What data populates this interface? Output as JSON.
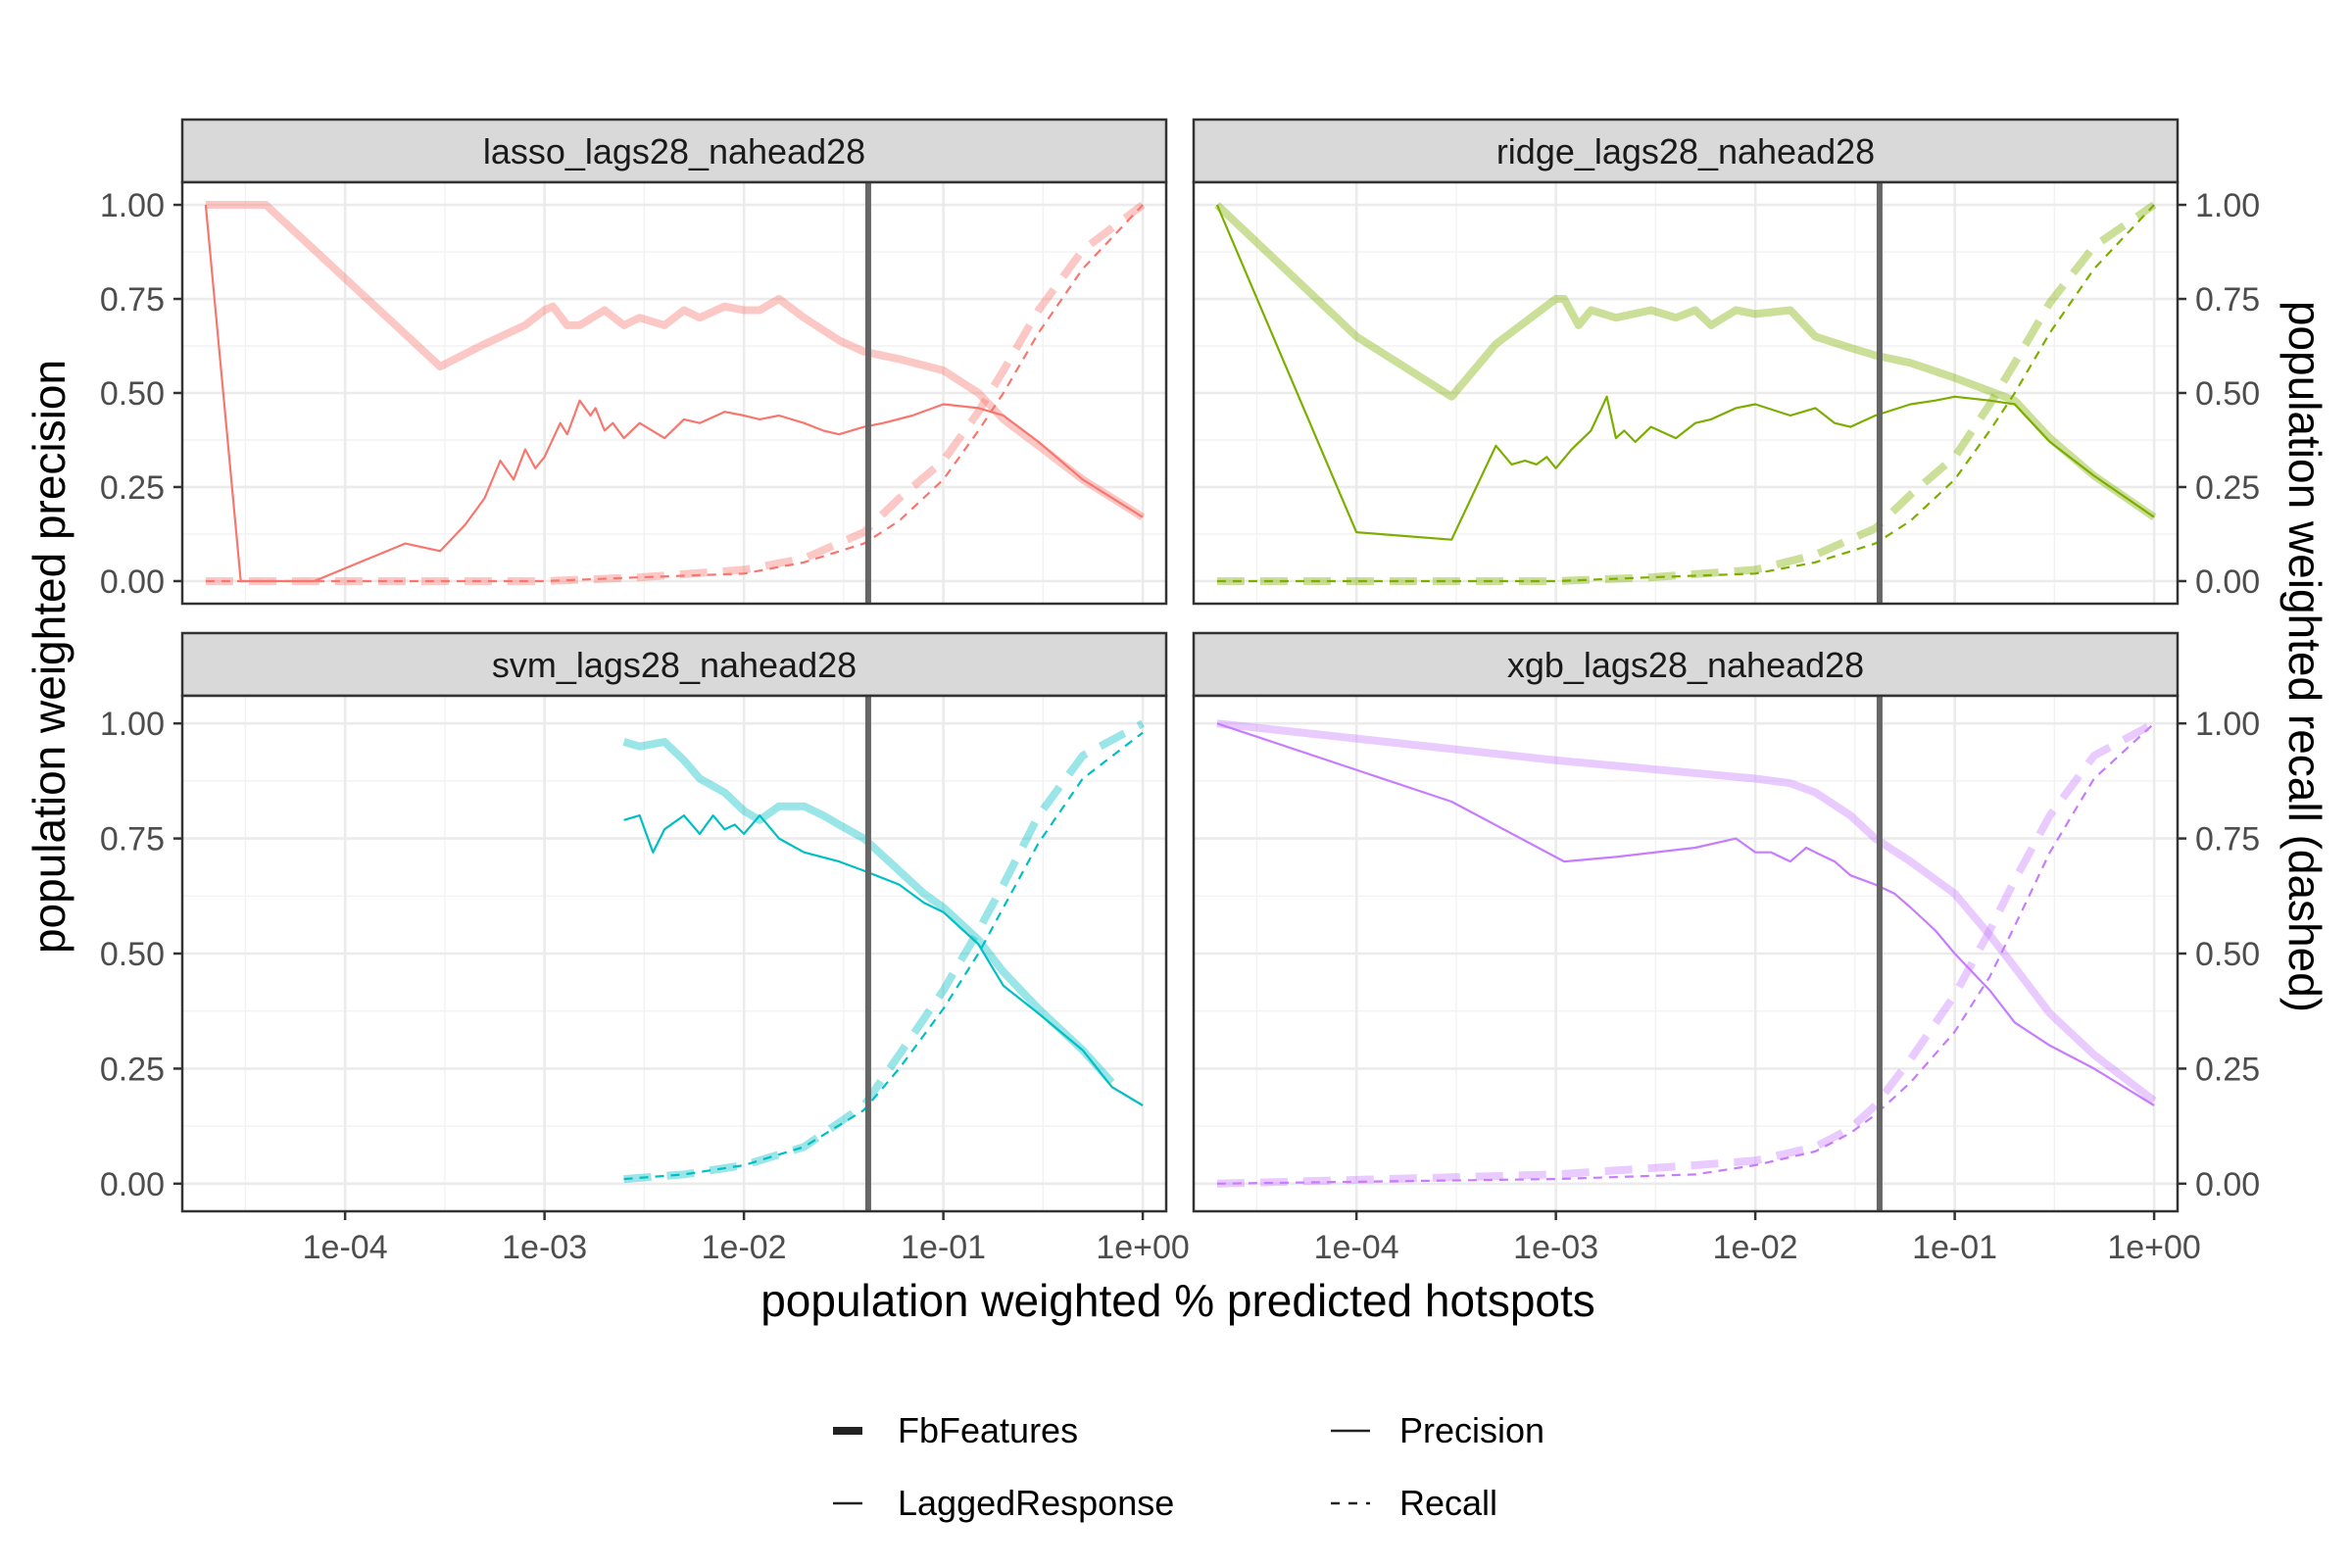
{
  "chart_data": {
    "type": "line",
    "xlabel": "population weighted % predicted hotspots",
    "ylabel": "population weighted precision",
    "y2label": "population weighted recall (dashed)",
    "x_scale": "log10",
    "xlim": [
      2e-05,
      1.0
    ],
    "ylim": [
      0,
      1
    ],
    "x_ticks": [
      {
        "value": 0.0001,
        "label": "1e-04"
      },
      {
        "value": 0.001,
        "label": "1e-03"
      },
      {
        "value": 0.01,
        "label": "1e-02"
      },
      {
        "value": 0.1,
        "label": "1e-01"
      },
      {
        "value": 1,
        "label": "1e+00"
      }
    ],
    "y_ticks": [
      {
        "value": 0,
        "label": "0.00"
      },
      {
        "value": 0.25,
        "label": "0.25"
      },
      {
        "value": 0.5,
        "label": "0.50"
      },
      {
        "value": 0.75,
        "label": "0.75"
      },
      {
        "value": 1,
        "label": "1.00"
      }
    ],
    "vline_x": 0.042,
    "grid": true,
    "legend": {
      "position": "bottom",
      "feature_items": [
        {
          "label": "FbFeatures",
          "style": "thick"
        },
        {
          "label": "LaggedResponse",
          "style": "thin"
        }
      ],
      "metric_items": [
        {
          "label": "Precision",
          "style": "solid"
        },
        {
          "label": "Recall",
          "style": "dashed"
        }
      ]
    },
    "panels": [
      {
        "title": "lasso_lags28_nahead28",
        "color": "#F8766D",
        "series": [
          {
            "feature": "FbFeatures",
            "metric": "Precision",
            "x": [
              2e-05,
              4e-05,
              0.0003,
              0.0005,
              0.0008,
              0.001,
              0.0011,
              0.0013,
              0.0015,
              0.002,
              0.0025,
              0.003,
              0.004,
              0.005,
              0.006,
              0.008,
              0.01,
              0.012,
              0.015,
              0.02,
              0.03,
              0.04,
              0.06,
              0.1,
              0.15,
              0.2,
              0.3,
              0.5,
              1.0
            ],
            "y": [
              1.0,
              1.0,
              0.57,
              0.63,
              0.68,
              0.72,
              0.73,
              0.68,
              0.68,
              0.72,
              0.68,
              0.7,
              0.68,
              0.72,
              0.7,
              0.73,
              0.72,
              0.72,
              0.75,
              0.7,
              0.64,
              0.61,
              0.59,
              0.56,
              0.5,
              0.43,
              0.36,
              0.27,
              0.17
            ]
          },
          {
            "feature": "LaggedResponse",
            "metric": "Precision",
            "x": [
              2e-05,
              3e-05,
              7e-05,
              0.0002,
              0.0003,
              0.0004,
              0.0005,
              0.0006,
              0.0007,
              0.0008,
              0.0009,
              0.001,
              0.0012,
              0.0013,
              0.0015,
              0.0017,
              0.0018,
              0.002,
              0.0022,
              0.0025,
              0.003,
              0.004,
              0.005,
              0.006,
              0.008,
              0.01,
              0.012,
              0.015,
              0.02,
              0.025,
              0.03,
              0.04,
              0.05,
              0.07,
              0.1,
              0.15,
              0.2,
              0.3,
              0.5,
              1.0
            ],
            "y": [
              1.0,
              0.0,
              0.0,
              0.1,
              0.08,
              0.15,
              0.22,
              0.32,
              0.27,
              0.35,
              0.3,
              0.33,
              0.42,
              0.39,
              0.48,
              0.44,
              0.46,
              0.4,
              0.42,
              0.38,
              0.42,
              0.38,
              0.43,
              0.42,
              0.45,
              0.44,
              0.43,
              0.44,
              0.42,
              0.4,
              0.39,
              0.41,
              0.42,
              0.44,
              0.47,
              0.46,
              0.44,
              0.37,
              0.27,
              0.17
            ]
          },
          {
            "feature": "FbFeatures",
            "metric": "Recall",
            "x": [
              2e-05,
              0.0001,
              0.001,
              0.003,
              0.01,
              0.02,
              0.04,
              0.06,
              0.1,
              0.15,
              0.2,
              0.3,
              0.5,
              1.0
            ],
            "y": [
              0.0,
              0.0,
              0.0,
              0.01,
              0.03,
              0.06,
              0.13,
              0.22,
              0.32,
              0.45,
              0.56,
              0.72,
              0.88,
              1.0
            ]
          },
          {
            "feature": "LaggedResponse",
            "metric": "Recall",
            "x": [
              2e-05,
              0.0001,
              0.001,
              0.003,
              0.01,
              0.02,
              0.04,
              0.06,
              0.1,
              0.15,
              0.2,
              0.3,
              0.5,
              1.0
            ],
            "y": [
              0.0,
              0.0,
              0.0,
              0.01,
              0.02,
              0.05,
              0.1,
              0.16,
              0.27,
              0.4,
              0.5,
              0.66,
              0.83,
              1.0
            ]
          }
        ]
      },
      {
        "title": "ridge_lags28_nahead28",
        "color": "#7CAE00",
        "series": [
          {
            "feature": "FbFeatures",
            "metric": "Precision",
            "x": [
              2e-05,
              0.0001,
              0.0003,
              0.0005,
              0.001,
              0.0011,
              0.0013,
              0.0015,
              0.002,
              0.003,
              0.004,
              0.005,
              0.006,
              0.008,
              0.01,
              0.015,
              0.02,
              0.03,
              0.04,
              0.06,
              0.1,
              0.2,
              0.3,
              0.5,
              1.0
            ],
            "y": [
              1.0,
              0.65,
              0.49,
              0.63,
              0.75,
              0.75,
              0.68,
              0.72,
              0.7,
              0.72,
              0.7,
              0.72,
              0.68,
              0.72,
              0.71,
              0.72,
              0.65,
              0.62,
              0.6,
              0.58,
              0.54,
              0.48,
              0.38,
              0.28,
              0.17
            ]
          },
          {
            "feature": "LaggedResponse",
            "metric": "Precision",
            "x": [
              2e-05,
              0.0001,
              0.0003,
              0.0005,
              0.0006,
              0.0007,
              0.0008,
              0.0009,
              0.001,
              0.0012,
              0.0015,
              0.0018,
              0.002,
              0.0022,
              0.0025,
              0.003,
              0.004,
              0.005,
              0.006,
              0.008,
              0.01,
              0.015,
              0.02,
              0.025,
              0.03,
              0.04,
              0.06,
              0.08,
              0.1,
              0.15,
              0.2,
              0.3,
              0.5,
              1.0
            ],
            "y": [
              1.0,
              0.13,
              0.11,
              0.36,
              0.31,
              0.32,
              0.31,
              0.33,
              0.3,
              0.35,
              0.4,
              0.49,
              0.38,
              0.4,
              0.37,
              0.41,
              0.38,
              0.42,
              0.43,
              0.46,
              0.47,
              0.44,
              0.46,
              0.42,
              0.41,
              0.44,
              0.47,
              0.48,
              0.49,
              0.48,
              0.47,
              0.37,
              0.28,
              0.17
            ]
          },
          {
            "feature": "FbFeatures",
            "metric": "Recall",
            "x": [
              2e-05,
              0.0001,
              0.001,
              0.003,
              0.01,
              0.02,
              0.04,
              0.06,
              0.1,
              0.15,
              0.2,
              0.3,
              0.5,
              1.0
            ],
            "y": [
              0.0,
              0.0,
              0.0,
              0.01,
              0.03,
              0.07,
              0.14,
              0.23,
              0.33,
              0.47,
              0.58,
              0.74,
              0.89,
              1.0
            ]
          },
          {
            "feature": "LaggedResponse",
            "metric": "Recall",
            "x": [
              2e-05,
              0.0001,
              0.001,
              0.003,
              0.01,
              0.02,
              0.04,
              0.06,
              0.1,
              0.15,
              0.2,
              0.3,
              0.5,
              1.0
            ],
            "y": [
              0.0,
              0.0,
              0.0,
              0.01,
              0.02,
              0.05,
              0.1,
              0.16,
              0.27,
              0.4,
              0.5,
              0.66,
              0.83,
              1.0
            ]
          }
        ]
      },
      {
        "title": "svm_lags28_nahead28",
        "color": "#00BFC4",
        "series": [
          {
            "feature": "FbFeatures",
            "metric": "Precision",
            "x": [
              0.0025,
              0.003,
              0.004,
              0.005,
              0.006,
              0.008,
              0.01,
              0.012,
              0.015,
              0.02,
              0.025,
              0.03,
              0.04,
              0.06,
              0.08,
              0.1,
              0.15,
              0.2,
              0.3,
              0.5,
              0.7
            ],
            "y": [
              0.96,
              0.95,
              0.96,
              0.92,
              0.88,
              0.85,
              0.81,
              0.79,
              0.82,
              0.82,
              0.8,
              0.78,
              0.75,
              0.68,
              0.63,
              0.6,
              0.53,
              0.46,
              0.38,
              0.29,
              0.22
            ]
          },
          {
            "feature": "LaggedResponse",
            "metric": "Precision",
            "x": [
              0.0025,
              0.003,
              0.0035,
              0.004,
              0.005,
              0.006,
              0.007,
              0.008,
              0.009,
              0.01,
              0.012,
              0.015,
              0.02,
              0.03,
              0.04,
              0.06,
              0.08,
              0.1,
              0.15,
              0.2,
              0.3,
              0.5,
              0.7,
              1.0
            ],
            "y": [
              0.79,
              0.8,
              0.72,
              0.77,
              0.8,
              0.76,
              0.8,
              0.77,
              0.78,
              0.76,
              0.8,
              0.75,
              0.72,
              0.7,
              0.68,
              0.65,
              0.61,
              0.59,
              0.52,
              0.43,
              0.37,
              0.29,
              0.21,
              0.17
            ]
          },
          {
            "feature": "FbFeatures",
            "metric": "Recall",
            "x": [
              0.0025,
              0.005,
              0.01,
              0.02,
              0.04,
              0.06,
              0.1,
              0.15,
              0.2,
              0.3,
              0.5,
              1.0
            ],
            "y": [
              0.01,
              0.02,
              0.04,
              0.08,
              0.17,
              0.28,
              0.42,
              0.55,
              0.65,
              0.8,
              0.93,
              1.0
            ]
          },
          {
            "feature": "LaggedResponse",
            "metric": "Recall",
            "x": [
              0.0025,
              0.005,
              0.01,
              0.02,
              0.04,
              0.06,
              0.1,
              0.15,
              0.2,
              0.3,
              0.5,
              1.0
            ],
            "y": [
              0.01,
              0.02,
              0.04,
              0.08,
              0.16,
              0.25,
              0.38,
              0.5,
              0.6,
              0.74,
              0.88,
              0.98
            ]
          }
        ]
      },
      {
        "title": "xgb_lags28_nahead28",
        "color": "#C77CFF",
        "series": [
          {
            "feature": "FbFeatures",
            "metric": "Precision",
            "x": [
              2e-05,
              0.001,
              0.01,
              0.015,
              0.02,
              0.03,
              0.04,
              0.06,
              0.1,
              0.15,
              0.2,
              0.3,
              0.5,
              1.0
            ],
            "y": [
              1.0,
              0.92,
              0.88,
              0.87,
              0.85,
              0.8,
              0.75,
              0.7,
              0.63,
              0.54,
              0.47,
              0.37,
              0.28,
              0.18
            ]
          },
          {
            "feature": "LaggedResponse",
            "metric": "Precision",
            "x": [
              2e-05,
              0.0003,
              0.0011,
              0.002,
              0.005,
              0.008,
              0.01,
              0.012,
              0.015,
              0.018,
              0.02,
              0.025,
              0.03,
              0.04,
              0.05,
              0.06,
              0.08,
              0.1,
              0.15,
              0.2,
              0.3,
              0.5,
              1.0
            ],
            "y": [
              1.0,
              0.83,
              0.7,
              0.71,
              0.73,
              0.75,
              0.72,
              0.72,
              0.7,
              0.73,
              0.72,
              0.7,
              0.67,
              0.65,
              0.63,
              0.6,
              0.55,
              0.5,
              0.42,
              0.35,
              0.3,
              0.25,
              0.17
            ]
          },
          {
            "feature": "FbFeatures",
            "metric": "Recall",
            "x": [
              2e-05,
              0.001,
              0.005,
              0.01,
              0.02,
              0.03,
              0.04,
              0.06,
              0.1,
              0.15,
              0.2,
              0.3,
              0.5,
              1.0
            ],
            "y": [
              0.0,
              0.02,
              0.04,
              0.05,
              0.08,
              0.12,
              0.17,
              0.27,
              0.41,
              0.55,
              0.66,
              0.8,
              0.93,
              1.0
            ]
          },
          {
            "feature": "LaggedResponse",
            "metric": "Recall",
            "x": [
              2e-05,
              0.001,
              0.005,
              0.01,
              0.02,
              0.03,
              0.04,
              0.06,
              0.1,
              0.15,
              0.2,
              0.3,
              0.5,
              1.0
            ],
            "y": [
              0.0,
              0.01,
              0.02,
              0.04,
              0.07,
              0.11,
              0.15,
              0.22,
              0.33,
              0.45,
              0.56,
              0.72,
              0.88,
              1.0
            ]
          }
        ]
      }
    ]
  }
}
